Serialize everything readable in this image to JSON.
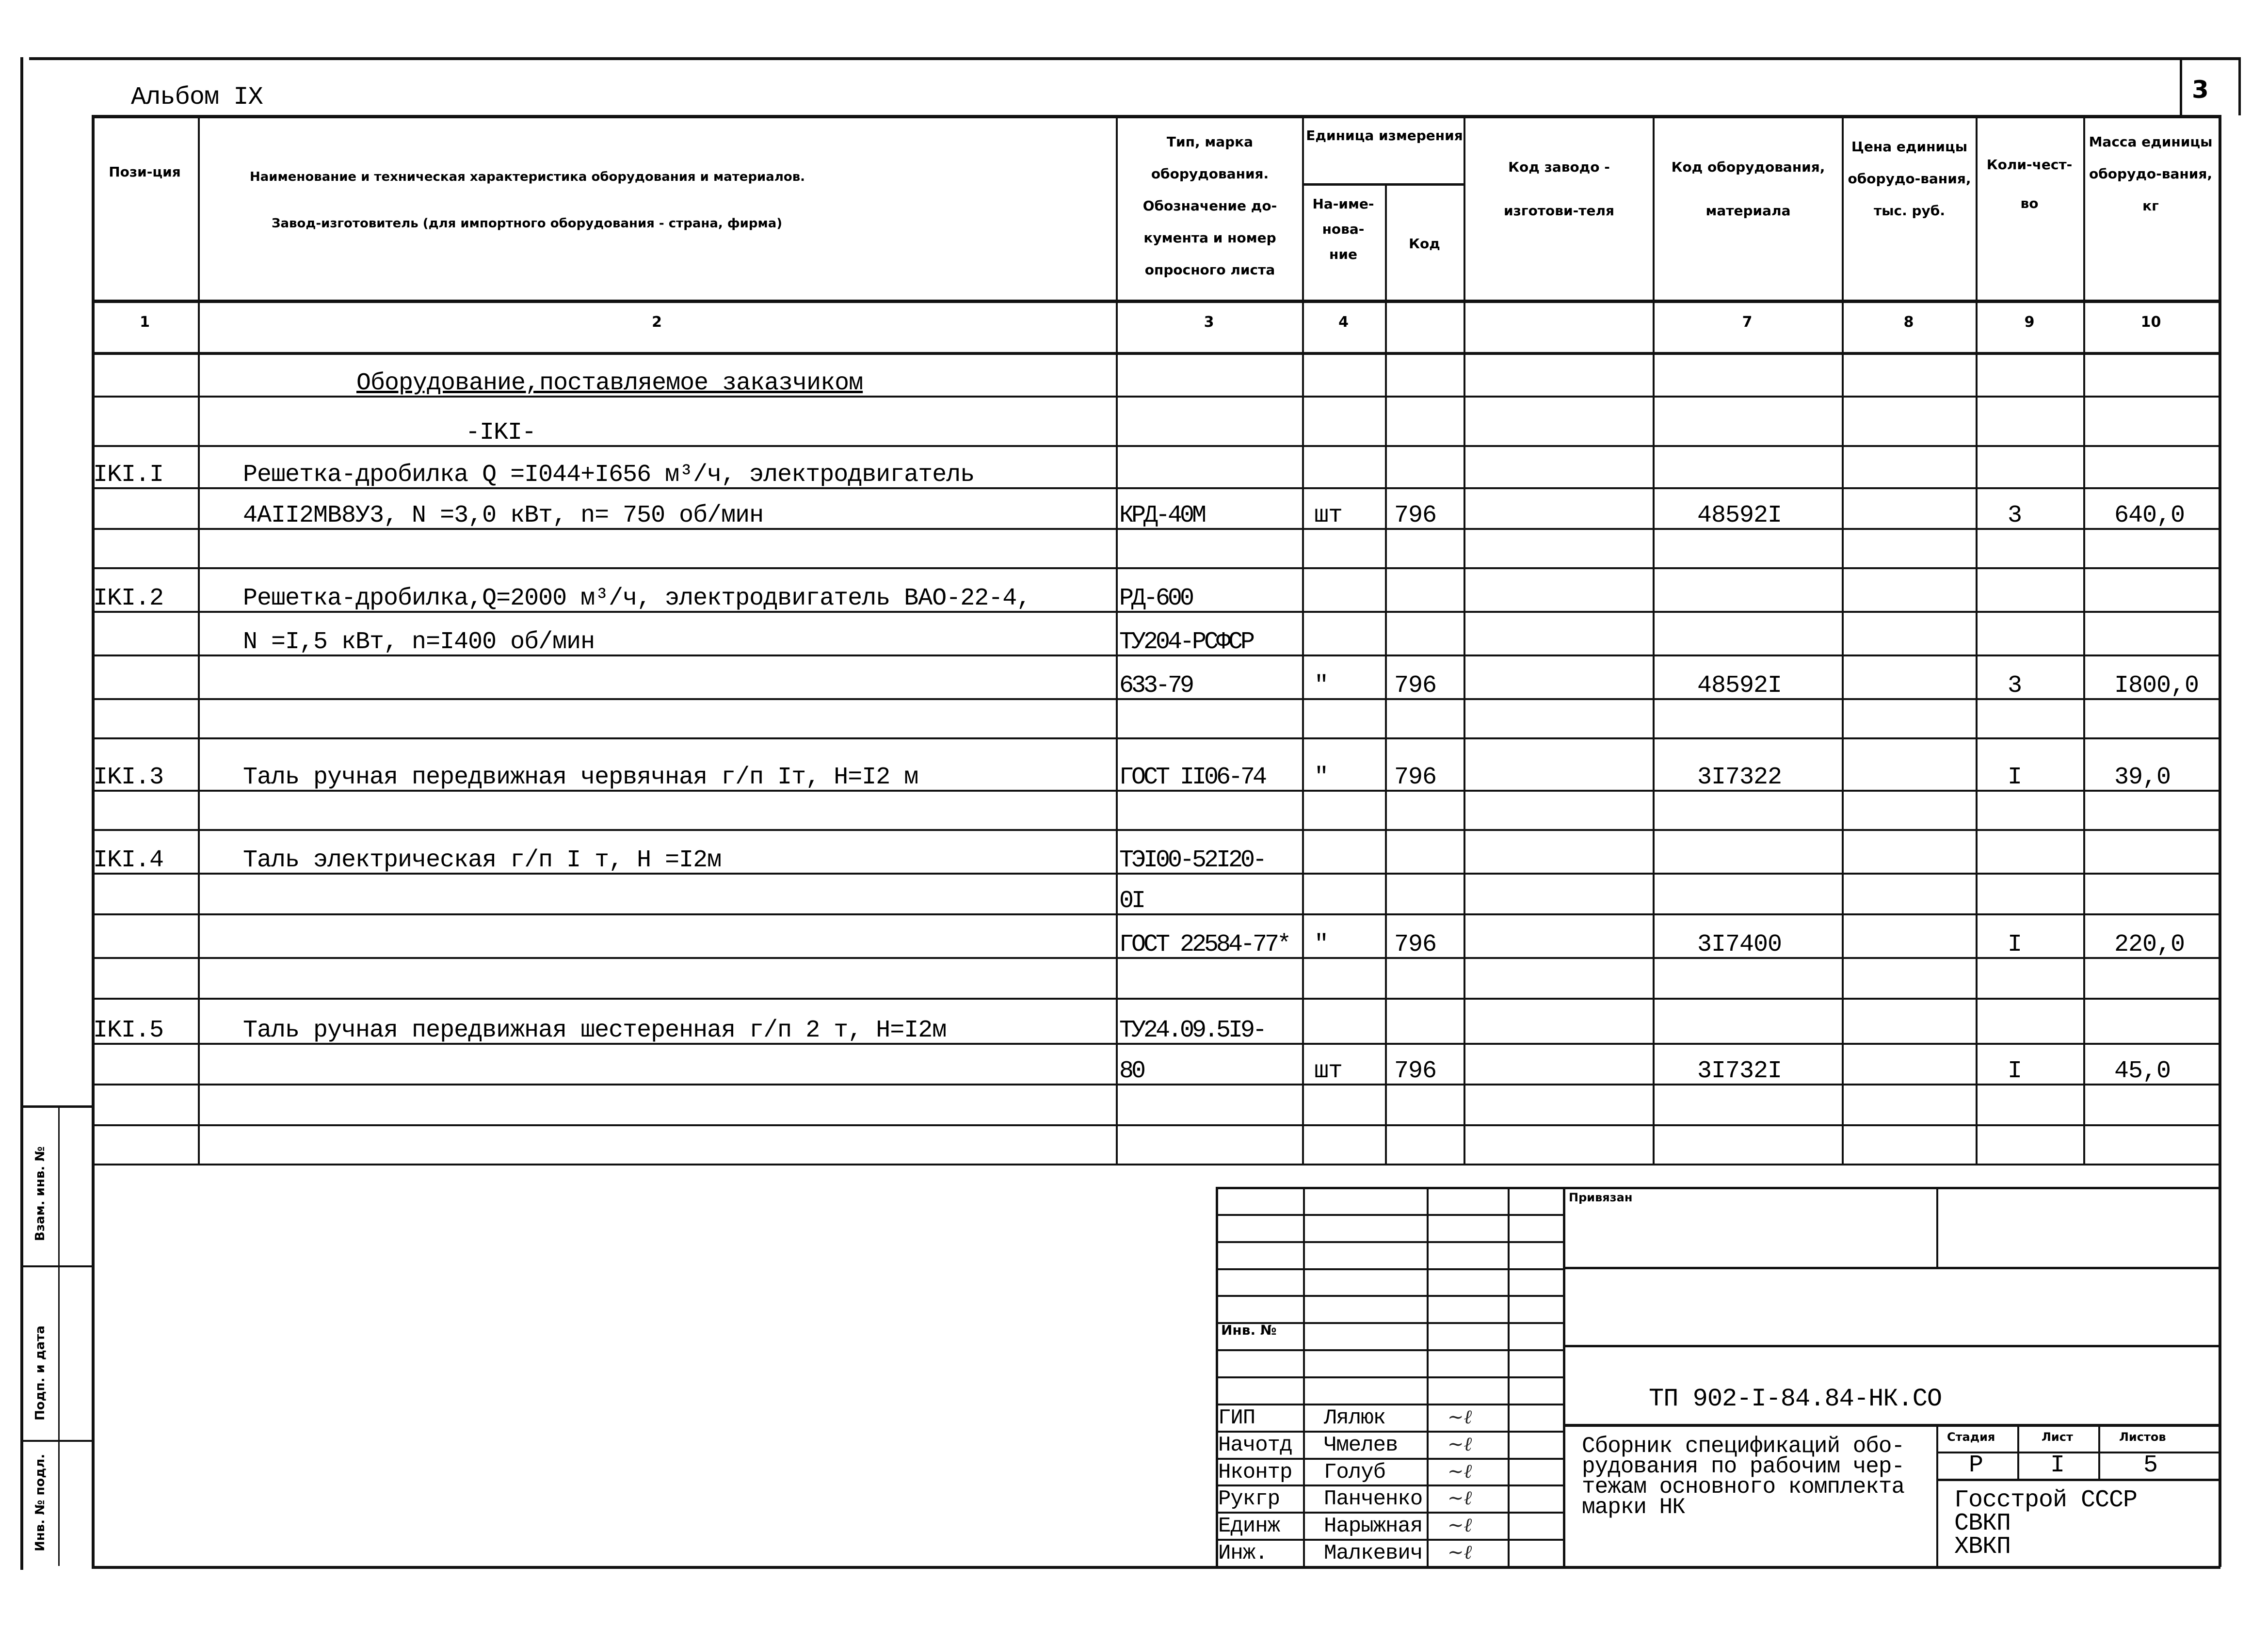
{
  "album": "Альбом IX",
  "page_number": "3",
  "header": {
    "col1": "Пози-ция",
    "col2_line1": "Наименование и техническая характеристика  оборудования и материалов.",
    "col2_line2": "Завод-изготовитель  (для импортного оборудования -  страна, фирма)",
    "col3": "Тип, марка оборудования. Обозначение до-кумента и номер опросного листа",
    "unit_group": "Единица измерения",
    "col4": "На-име-нова-ние",
    "col5": "Код",
    "col6": "Код заводо - изготови-теля",
    "col7": "Код оборудования, материала",
    "col8": "Цена единицы оборудо-вания, тыс. руб.",
    "col9": "Коли-чест-во",
    "col10": "Масса единицы оборудо-вания, кг"
  },
  "column_numbers": [
    "1",
    "2",
    "3",
    "4",
    "",
    "",
    "7",
    "8",
    "9",
    "10"
  ],
  "rows": [
    {
      "pos": "",
      "name": "Оборудование,поставляемое заказчиком",
      "type": "",
      "unit": "",
      "code": "",
      "mat": "",
      "qty": "",
      "mass": ""
    },
    {
      "pos": "",
      "name": "-IKI-",
      "type": "",
      "unit": "",
      "code": "",
      "mat": "",
      "qty": "",
      "mass": ""
    },
    {
      "pos": "IKI.I",
      "name": "Решетка-дробилка Q =I044+I656 м³/ч, электродвигатель",
      "type": "",
      "unit": "",
      "code": "",
      "mat": "",
      "qty": "",
      "mass": ""
    },
    {
      "pos": "",
      "name": "4AII2MB8У3,   N =3,0 кВт, n= 750 об/мин",
      "type": "КРД-40М",
      "unit": "шт",
      "code": "796",
      "mat": "48592I",
      "qty": "3",
      "mass": "640,0"
    },
    {
      "pos": "",
      "name": "",
      "type": "",
      "unit": "",
      "code": "",
      "mat": "",
      "qty": "",
      "mass": ""
    },
    {
      "pos": "IKI.2",
      "name": "Решетка-дробилка,Q=2000 м³/ч, электродвигатель ВАО-22-4,",
      "type": "РД-600",
      "unit": "",
      "code": "",
      "mat": "",
      "qty": "",
      "mass": ""
    },
    {
      "pos": "",
      "name": " N =I,5 кВт, n=I400 об/мин",
      "type": "ТУ204-РСФСР",
      "unit": "",
      "code": "",
      "mat": "",
      "qty": "",
      "mass": ""
    },
    {
      "pos": "",
      "name": "",
      "type": "633-79",
      "unit": "\"",
      "code": "796",
      "mat": "48592I",
      "qty": "3",
      "mass": "I800,0"
    },
    {
      "pos": "",
      "name": "",
      "type": "",
      "unit": "",
      "code": "",
      "mat": "",
      "qty": "",
      "mass": ""
    },
    {
      "pos": "IKI.3",
      "name": "Таль ручная передвижная червячная г/п Iт, Н=I2 м",
      "type": "ГОСТ II06-74",
      "unit": "\"",
      "code": "796",
      "mat": "3I7322",
      "qty": "I",
      "mass": "39,0"
    },
    {
      "pos": "",
      "name": "",
      "type": "",
      "unit": "",
      "code": "",
      "mat": "",
      "qty": "",
      "mass": ""
    },
    {
      "pos": "IKI.4",
      "name": "Таль электрическая г/п I т, Н =I2м",
      "type": "ТЭI00-52I20-",
      "unit": "",
      "code": "",
      "mat": "",
      "qty": "",
      "mass": ""
    },
    {
      "pos": "",
      "name": "",
      "type": "0I",
      "unit": "",
      "code": "",
      "mat": "",
      "qty": "",
      "mass": ""
    },
    {
      "pos": "",
      "name": "",
      "type": "ГОСТ 22584-77*",
      "unit": "\"",
      "code": "796",
      "mat": "3I7400",
      "qty": "I",
      "mass": "220,0"
    },
    {
      "pos": "",
      "name": "",
      "type": "",
      "unit": "",
      "code": "",
      "mat": "",
      "qty": "",
      "mass": ""
    },
    {
      "pos": "IKI.5",
      "name": "Таль ручная передвижная шестеренная г/п 2 т, Н=I2м",
      "type": "ТУ24.09.5I9-",
      "unit": "",
      "code": "",
      "mat": "",
      "qty": "",
      "mass": ""
    },
    {
      "pos": "",
      "name": "",
      "type": "80",
      "unit": "шт",
      "code": "796",
      "mat": "3I732I",
      "qty": "I",
      "mass": "45,0"
    },
    {
      "pos": "",
      "name": "",
      "type": "",
      "unit": "",
      "code": "",
      "mat": "",
      "qty": "",
      "mass": ""
    },
    {
      "pos": "",
      "name": "",
      "type": "",
      "unit": "",
      "code": "",
      "mat": "",
      "qty": "",
      "mass": ""
    }
  ],
  "side_stamp": {
    "inv_orig": "Инв. № подл.",
    "sign_date": "Подп. и дата",
    "replace_inv": "Взам. инв. №"
  },
  "title_block": {
    "privyazan": "Привязан",
    "inv_no": "Инв. №",
    "doc_code": "ТП 902-I-84.84-НК.СО",
    "description": "Сборник спецификаций обо-рудования по рабочим чер-тежам основного комплекта марки НК",
    "stage_label": "Стадия",
    "sheet_label": "Лист",
    "sheets_label": "Листов",
    "stage": "Р",
    "sheet": "I",
    "sheets": "5",
    "org_line1": "Госстрой СССР",
    "org_line2": "СВКП",
    "org_line3": "ХВКП",
    "staff": [
      {
        "role": "ГИП",
        "name": "Лялюк"
      },
      {
        "role": "Начотд",
        "name": "Чмелев"
      },
      {
        "role": "Нконтр",
        "name": "Голуб"
      },
      {
        "role": "Рукгр",
        "name": "Панченко"
      },
      {
        "role": "Единж",
        "name": "Нарыжная"
      },
      {
        "role": "Инж.",
        "name": "Малкевич"
      }
    ]
  }
}
